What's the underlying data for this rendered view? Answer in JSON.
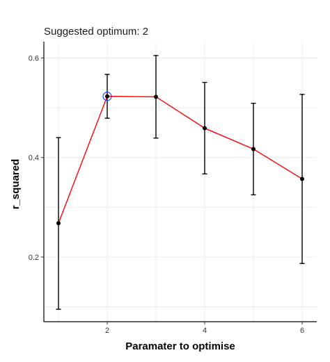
{
  "chart_data": {
    "type": "line",
    "subtitle": "Suggested optimum: 2",
    "xlabel": "Paramater to optimise",
    "ylabel": "r_squared",
    "xlim": [
      0.7,
      6.3
    ],
    "ylim": [
      0.07,
      0.63
    ],
    "x_ticks": [
      2,
      4,
      6
    ],
    "y_ticks": [
      0.2,
      0.4,
      0.6
    ],
    "x_tick_labels": [
      "2",
      "4",
      "6"
    ],
    "y_tick_labels": [
      "0.2",
      "0.4",
      "0.6"
    ],
    "grid": true,
    "line_color": "#ff0000",
    "highlight_color": "#1f3fff",
    "highlight_x": 2,
    "points": [
      {
        "x": 1,
        "y": 0.268,
        "lower": 0.095,
        "upper": 0.44
      },
      {
        "x": 2,
        "y": 0.523,
        "lower": 0.479,
        "upper": 0.567
      },
      {
        "x": 3,
        "y": 0.522,
        "lower": 0.439,
        "upper": 0.605
      },
      {
        "x": 4,
        "y": 0.459,
        "lower": 0.367,
        "upper": 0.551
      },
      {
        "x": 5,
        "y": 0.417,
        "lower": 0.325,
        "upper": 0.509
      },
      {
        "x": 6,
        "y": 0.357,
        "lower": 0.187,
        "upper": 0.527
      }
    ]
  }
}
